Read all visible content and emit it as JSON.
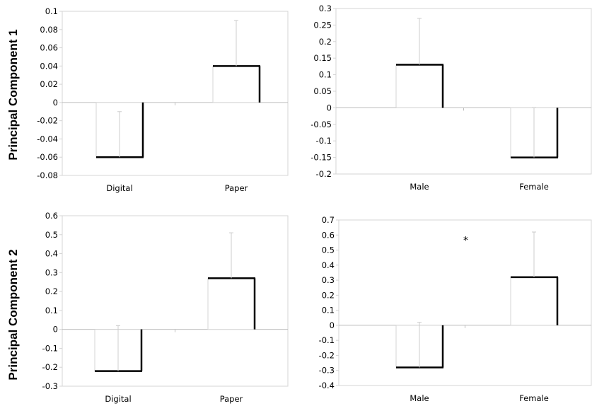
{
  "rows": [
    {
      "label": "Principal Component 1"
    },
    {
      "label": "Principal Component 2"
    }
  ],
  "chart_data": [
    {
      "type": "bar",
      "categories": [
        "Digital",
        "Paper"
      ],
      "values": [
        -0.06,
        0.04
      ],
      "error_bars": [
        0.05,
        0.05
      ],
      "ylim": [
        -0.08,
        0.1
      ],
      "yticks": [
        "0.1",
        "0.08",
        "0.06",
        "0.04",
        "0.02",
        "0",
        "-0.02",
        "-0.04",
        "-0.06",
        "-0.08"
      ],
      "ytick_values": [
        0.1,
        0.08,
        0.06,
        0.04,
        0.02,
        0,
        -0.02,
        -0.04,
        -0.06,
        -0.08
      ],
      "title": "",
      "xlabel": "",
      "ylabel": "",
      "grid": false,
      "annotations": []
    },
    {
      "type": "bar",
      "categories": [
        "Male",
        "Female"
      ],
      "values": [
        0.13,
        -0.15
      ],
      "error_bars": [
        0.14,
        0.15
      ],
      "ylim": [
        -0.2,
        0.3
      ],
      "yticks": [
        "0.3",
        "0.25",
        "0.2",
        "0.15",
        "0.1",
        "0.05",
        "0",
        "-0.05",
        "-0.1",
        "-0.15",
        "-0.2"
      ],
      "ytick_values": [
        0.3,
        0.25,
        0.2,
        0.15,
        0.1,
        0.05,
        0,
        -0.05,
        -0.1,
        -0.15,
        -0.2
      ],
      "title": "",
      "xlabel": "",
      "ylabel": "",
      "grid": false,
      "annotations": []
    },
    {
      "type": "bar",
      "categories": [
        "Digital",
        "Paper"
      ],
      "values": [
        -0.22,
        0.27
      ],
      "error_bars": [
        0.24,
        0.24
      ],
      "ylim": [
        -0.3,
        0.6
      ],
      "yticks": [
        "0.6",
        "0.5",
        "0.4",
        "0.3",
        "0.2",
        "0.1",
        "0",
        "-0.1",
        "-0.2",
        "-0.3"
      ],
      "ytick_values": [
        0.6,
        0.5,
        0.4,
        0.3,
        0.2,
        0.1,
        0,
        -0.1,
        -0.2,
        -0.3
      ],
      "title": "",
      "xlabel": "",
      "ylabel": "",
      "grid": false,
      "annotations": []
    },
    {
      "type": "bar",
      "categories": [
        "Male",
        "Female"
      ],
      "values": [
        -0.28,
        0.32
      ],
      "error_bars": [
        0.3,
        0.3
      ],
      "ylim": [
        -0.4,
        0.7
      ],
      "yticks": [
        "0.7",
        "0.6",
        "0.5",
        "0.4",
        "0.3",
        "0.2",
        "0.1",
        "0",
        "-0.1",
        "-0.2",
        "-0.3",
        "-0.4"
      ],
      "ytick_values": [
        0.7,
        0.6,
        0.5,
        0.4,
        0.3,
        0.2,
        0.1,
        0,
        -0.1,
        -0.2,
        -0.3,
        -0.4
      ],
      "title": "",
      "xlabel": "",
      "ylabel": "",
      "grid": false,
      "annotations": [
        {
          "text": "*",
          "y": 0.57
        }
      ]
    }
  ],
  "colors": {
    "bar_fill": "#ffffff",
    "bar_edge": "#000000",
    "error_bar": "#cccccc",
    "plot_frame": "#d4d4d4",
    "zero_line": "#bdbdbd"
  }
}
